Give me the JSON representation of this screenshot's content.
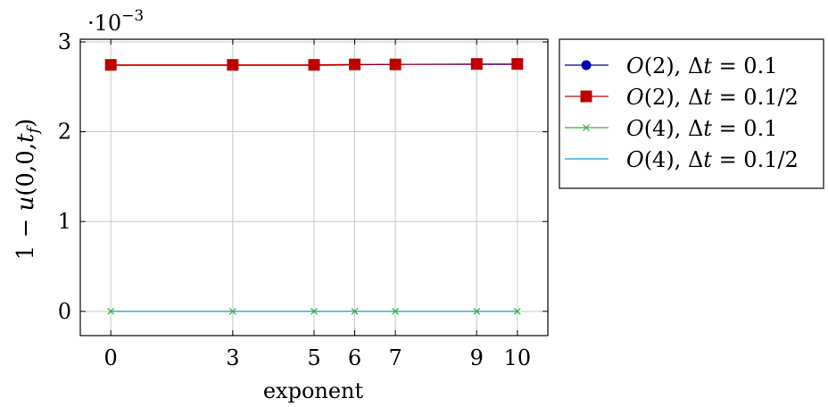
{
  "chart_data": {
    "type": "line",
    "x": [
      0,
      3,
      5,
      6,
      7,
      9,
      10
    ],
    "xlabel": "exponent",
    "ylabel": "1 − u(0,0,t_f)",
    "ylabel_parts": {
      "main": "1 − ",
      "u": "u",
      "args": "(0,0,",
      "t": "t",
      "sub": "f",
      "close": ")"
    },
    "y_scale_label": {
      "base": "·10",
      "exp": "−3"
    },
    "xlim": [
      -0.75,
      10.75
    ],
    "ylim": [
      -0.27,
      3.03
    ],
    "y_multiplier": 0.001,
    "xticks": [
      0,
      3,
      5,
      6,
      7,
      9,
      10
    ],
    "yticks": [
      0,
      1,
      2,
      3
    ],
    "grid": true,
    "legend_position": "outside-right-top",
    "series": [
      {
        "name": "O(2), Δt = 0.1",
        "order": "2",
        "dt": "0.1",
        "color": "#0000b3",
        "marker": "circle",
        "values": [
          2.74,
          2.74,
          2.74,
          2.745,
          2.75,
          2.75,
          2.75
        ]
      },
      {
        "name": "O(2), Δt = 0.1/2",
        "order": "2",
        "dt": "0.1/2",
        "color": "#bf0000",
        "marker": "square",
        "values": [
          2.745,
          2.745,
          2.745,
          2.75,
          2.75,
          2.755,
          2.755
        ]
      },
      {
        "name": "O(4), Δt = 0.1",
        "order": "4",
        "dt": "0.1",
        "color": "#2db32d",
        "marker": "x",
        "values": [
          0,
          0,
          0,
          0,
          0,
          0,
          0
        ]
      },
      {
        "name": "O(4), Δt = 0.1/2",
        "order": "4",
        "dt": "0.1/2",
        "color": "#1fa3e0",
        "marker": "none",
        "values": [
          0,
          0,
          0,
          0,
          0,
          0,
          0
        ]
      }
    ]
  }
}
